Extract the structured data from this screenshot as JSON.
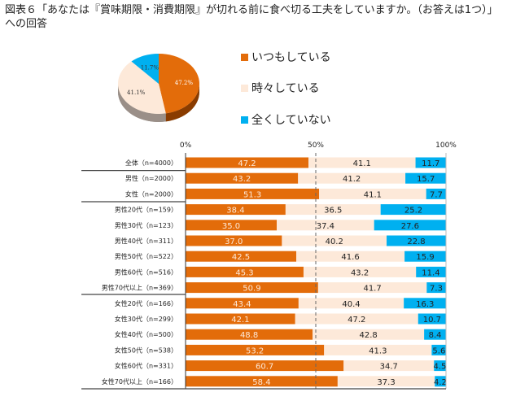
{
  "title_line1": "図表６「あなたは『賞味期限・消費期限』が切れる前に食べ切る工夫をしていますか。（お答えは1つ）」",
  "title_line2": "への回答",
  "chart_data": [
    {
      "type": "pie",
      "title": "全体",
      "slices": [
        {
          "label": "いつもしている",
          "value": 47.2,
          "display": "47.2%"
        },
        {
          "label": "時々している",
          "value": 41.1,
          "display": "41.1%"
        },
        {
          "label": "全くしていない",
          "value": 11.7,
          "display": "11.7%"
        }
      ]
    },
    {
      "type": "bar",
      "stacked": true,
      "orientation": "horizontal",
      "x_ticks": [
        "0%",
        "50%",
        "100%"
      ],
      "xlim": [
        0,
        100
      ],
      "legend": [
        "いつもしている",
        "時々している",
        "全くしていない"
      ],
      "colors": [
        "#e36c0a",
        "#fde9d9",
        "#00b0f0"
      ],
      "categories": [
        "全体（n=4000）",
        "男性（n=2000）",
        "女性（n=2000）",
        "男性20代（n=159）",
        "男性30代（n=123）",
        "男性40代（n=311）",
        "男性50代（n=522）",
        "男性60代（n=516）",
        "男性70代以上（n=369）",
        "女性20代（n=166）",
        "女性30代（n=299）",
        "女性40代（n=500）",
        "女性50代（n=538）",
        "女性60代（n=331）",
        "女性70代以上（n=166）"
      ],
      "series": [
        {
          "name": "いつもしている",
          "values": [
            47.2,
            43.2,
            51.3,
            38.4,
            35.0,
            37.0,
            42.5,
            45.3,
            50.9,
            43.4,
            42.1,
            48.8,
            53.2,
            60.7,
            58.4
          ]
        },
        {
          "name": "時々している",
          "values": [
            41.1,
            41.2,
            41.1,
            36.5,
            37.4,
            40.2,
            41.6,
            43.2,
            41.7,
            40.4,
            47.2,
            42.8,
            41.3,
            34.7,
            37.3
          ]
        },
        {
          "name": "全くしていない",
          "values": [
            11.7,
            15.7,
            7.7,
            25.2,
            27.6,
            22.8,
            15.9,
            11.4,
            7.3,
            16.3,
            10.7,
            8.4,
            5.6,
            4.5,
            4.2
          ]
        }
      ]
    }
  ]
}
